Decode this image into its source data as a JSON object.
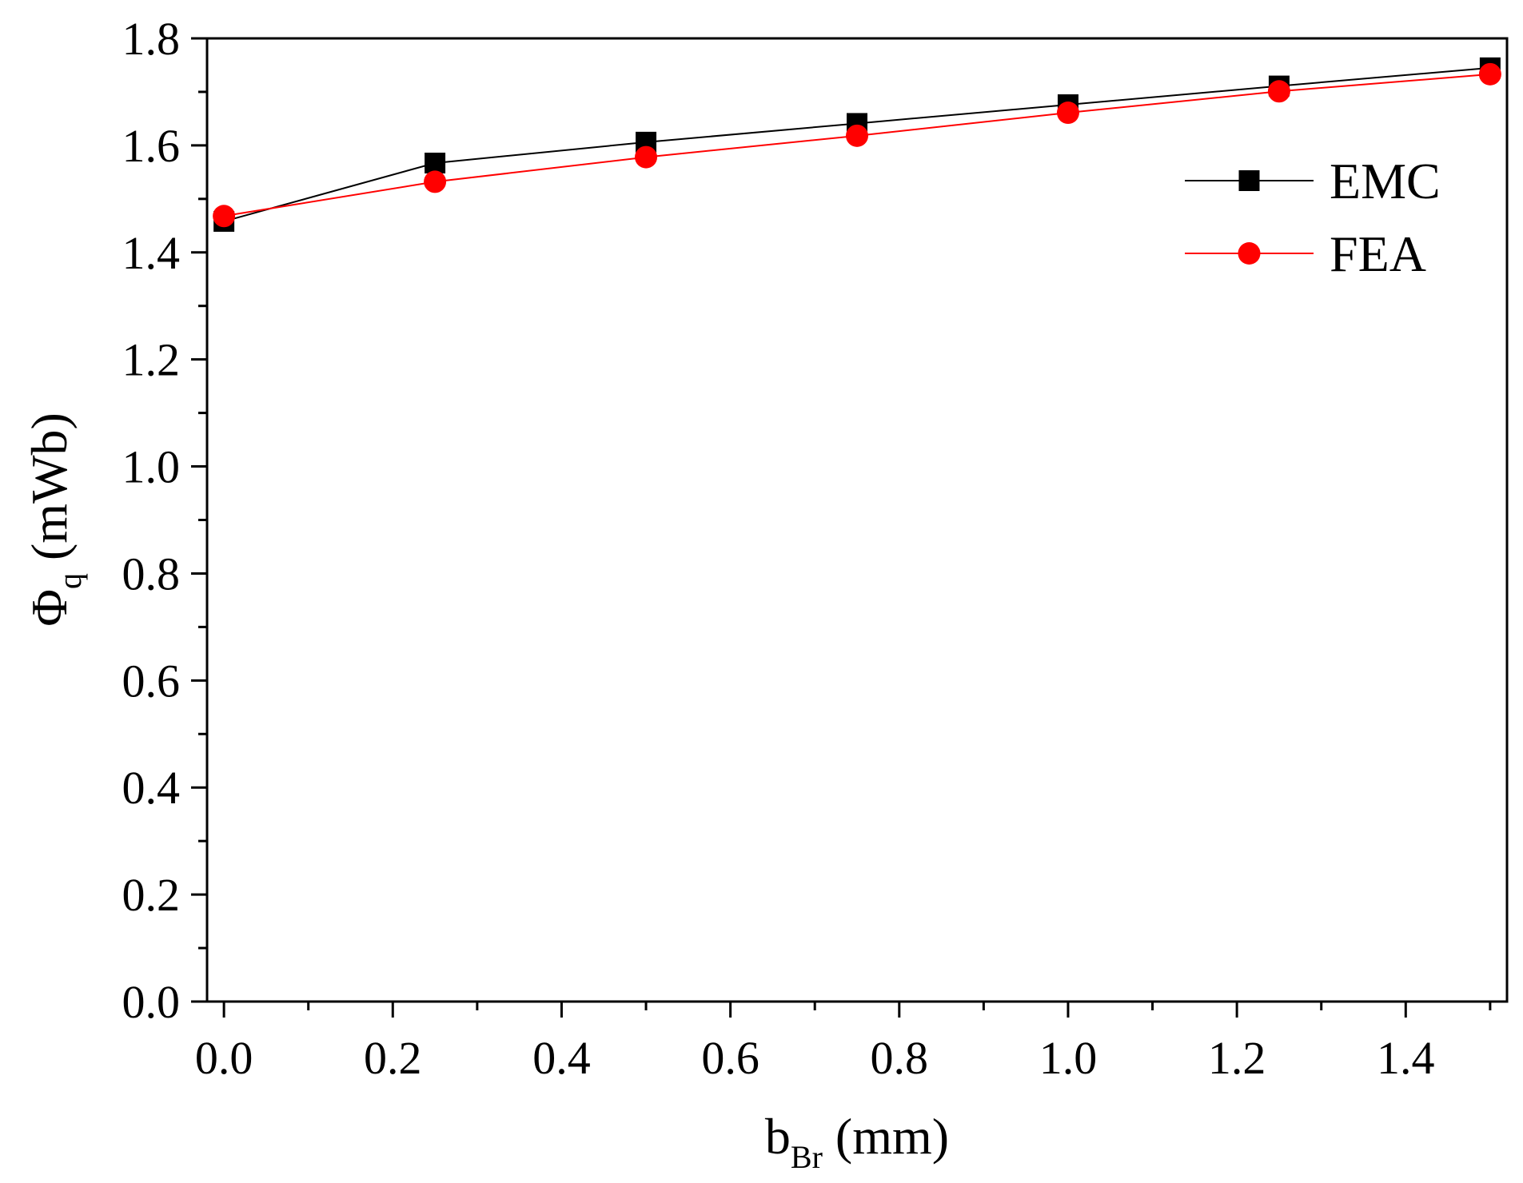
{
  "chart_data": {
    "type": "line",
    "title": "",
    "xlabel": {
      "main": "b",
      "sub": "Br",
      "unit": " (mm)"
    },
    "ylabel": {
      "main": "Φ",
      "sub": "q",
      "unit": " (mWb)"
    },
    "xlim": [
      -0.02,
      1.52
    ],
    "ylim": [
      0.0,
      1.8
    ],
    "x_ticks": [
      0.0,
      0.2,
      0.4,
      0.6,
      0.8,
      1.0,
      1.2,
      1.4
    ],
    "x_tick_labels": [
      "0.0",
      "0.2",
      "0.4",
      "0.6",
      "0.8",
      "1.0",
      "1.2",
      "1.4"
    ],
    "y_ticks": [
      0.0,
      0.2,
      0.4,
      0.6,
      0.8,
      1.0,
      1.2,
      1.4,
      1.6,
      1.8
    ],
    "y_tick_labels": [
      "0.0",
      "0.2",
      "0.4",
      "0.6",
      "0.8",
      "1.0",
      "1.2",
      "1.4",
      "1.6",
      "1.8"
    ],
    "grid": false,
    "legend_position": "top-right",
    "x": [
      0.0,
      0.25,
      0.5,
      0.75,
      1.0,
      1.25,
      1.5
    ],
    "series": [
      {
        "name": "EMC",
        "marker": "square",
        "color": "#000000",
        "values": [
          1.458,
          1.567,
          1.606,
          1.641,
          1.676,
          1.711,
          1.745
        ]
      },
      {
        "name": "FEA",
        "marker": "circle",
        "color": "#ff0000",
        "values": [
          1.468,
          1.532,
          1.578,
          1.618,
          1.661,
          1.701,
          1.733
        ]
      }
    ]
  }
}
